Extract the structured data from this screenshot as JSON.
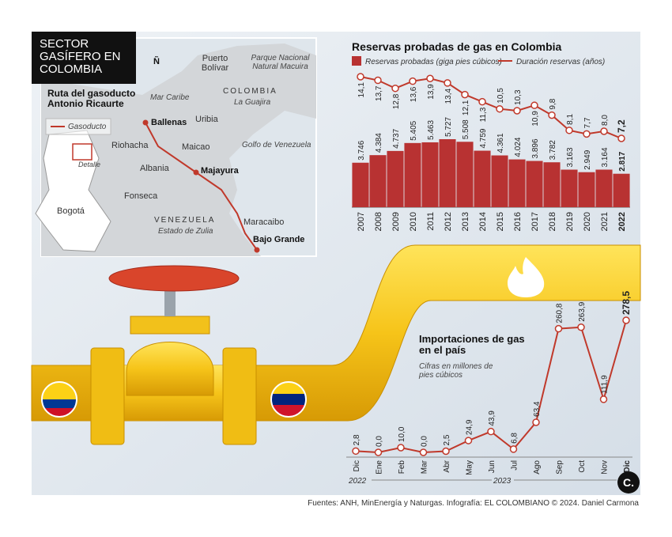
{
  "header": {
    "title": "SECTOR GASÍFERO EN COLOMBIA"
  },
  "map": {
    "title": "Ruta del gasoducto Antonio Ricaurte",
    "legend": "Gasoducto",
    "detail": "Detalle",
    "capital": "Bogotá",
    "north": "Ñ",
    "places": [
      "Puerto Bolívar",
      "Parque Nacional Natural Macuira",
      "COLOMBIA",
      "La Guajira",
      "Mar Caribe",
      "Ballenas",
      "Uribia",
      "Riohacha",
      "Maicao",
      "Golfo de Venezuela",
      "Albania",
      "Majayura",
      "Fonseca",
      "VENEZUELA",
      "Estado de Zulia",
      "Maracaibo",
      "Bajo Grande"
    ]
  },
  "chart_data": [
    {
      "type": "bar_line",
      "title": "Reservas probadas de gas en Colombia",
      "categories": [
        "2007",
        "2008",
        "2009",
        "2010",
        "2011",
        "2012",
        "2013",
        "2014",
        "2015",
        "2016",
        "2017",
        "2018",
        "2019",
        "2020",
        "2021",
        "2022"
      ],
      "series": [
        {
          "name": "Reservas probadas (giga pies cúbicos)",
          "color": "#b83232",
          "values": [
            3746,
            4384,
            4737,
            5405,
            5463,
            5727,
            5508,
            4759,
            4361,
            4024,
            3896,
            3782,
            3163,
            2949,
            3164,
            2817
          ],
          "value_labels": [
            "3.746",
            "4.384",
            "4.737",
            "5.405",
            "5.463",
            "5.727",
            "5.508",
            "4.759",
            "4.361",
            "4.024",
            "3.896",
            "3.782",
            "3.163",
            "2.949",
            "3.164",
            "2.817"
          ]
        },
        {
          "name": "Duración reservas (años)",
          "color": "#c0392b",
          "values": [
            14.1,
            13.7,
            12.8,
            13.6,
            13.9,
            13.4,
            12.1,
            11.3,
            10.5,
            10.3,
            10.9,
            9.8,
            8.1,
            7.7,
            8.0,
            7.2
          ],
          "value_labels": [
            "14,1",
            "13,7",
            "12,8",
            "13,6",
            "13,9",
            "13,4",
            "12,1",
            "11,3",
            "10,5",
            "10,3",
            "10,9",
            "9,8",
            "8,1",
            "7,7",
            "8,0",
            "7,2"
          ]
        }
      ]
    },
    {
      "type": "line",
      "title": "Importaciones de gas en el país",
      "subtitle": "Cifras en millones de pies cúbicos",
      "categories": [
        "Dic",
        "Ene",
        "Feb",
        "Mar",
        "Abr",
        "May",
        "Jun",
        "Jul",
        "Ago",
        "Sep",
        "Oct",
        "Nov",
        "Dic"
      ],
      "year_labels": [
        "2022",
        "2023"
      ],
      "series": [
        {
          "color": "#c0392b",
          "values": [
            2.8,
            0.0,
            10.0,
            0.0,
            2.5,
            24.9,
            43.9,
            6.8,
            63.4,
            260.8,
            263.9,
            111.9,
            278.5
          ],
          "value_labels": [
            "2,8",
            "0,0",
            "10,0",
            "0,0",
            "2,5",
            "24,9",
            "43,9",
            "6,8",
            "63,4",
            "260,8",
            "263,9",
            "111,9",
            "278,5"
          ]
        }
      ]
    }
  ],
  "footer": "Fuentes: ANH, MinEnergía y Naturgas. Infografía: EL COLOMBIANO © 2024. Daniel Carmona",
  "logo": "C."
}
